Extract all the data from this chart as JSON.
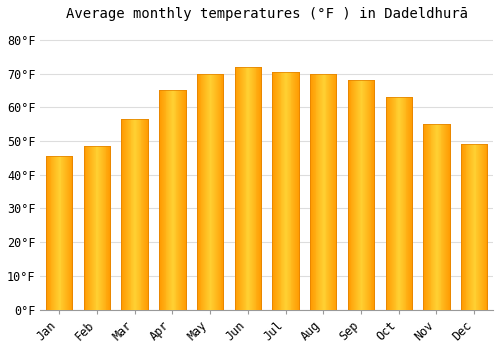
{
  "title": "Average monthly temperatures (°F ) in Dadeldhurā",
  "months": [
    "Jan",
    "Feb",
    "Mar",
    "Apr",
    "May",
    "Jun",
    "Jul",
    "Aug",
    "Sep",
    "Oct",
    "Nov",
    "Dec"
  ],
  "values": [
    45.5,
    48.5,
    56.5,
    65.0,
    70.0,
    72.0,
    70.5,
    70.0,
    68.0,
    63.0,
    55.0,
    49.0
  ],
  "bar_color_light": "#FFD966",
  "bar_color_mid": "#FFA500",
  "bar_color_edge": "#E08000",
  "background_color": "#FFFFFF",
  "grid_color": "#DDDDDD",
  "ylim": [
    0,
    84
  ],
  "yticks": [
    0,
    10,
    20,
    30,
    40,
    50,
    60,
    70,
    80
  ],
  "ytick_labels": [
    "0°F",
    "10°F",
    "20°F",
    "30°F",
    "40°F",
    "50°F",
    "60°F",
    "70°F",
    "80°F"
  ],
  "title_fontsize": 10,
  "tick_fontsize": 8.5,
  "font_family": "monospace"
}
